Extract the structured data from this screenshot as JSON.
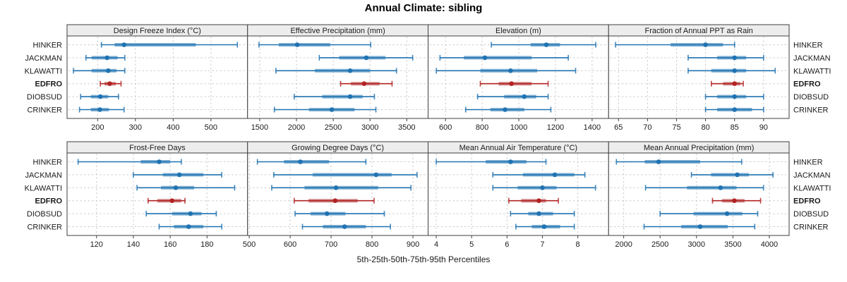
{
  "title": "Annual Climate: sibling",
  "caption": "5th-25th-50th-75th-95th Percentiles",
  "colors": {
    "series_blue": "#2073B2",
    "series_blue_band": "#7FAFD3",
    "highlight_red": "#B22222",
    "highlight_red_band": "#D08A8A",
    "gridline": "#CCCCCC",
    "panel_border": "#3F3F3F",
    "strip_background": "#EDEDED",
    "text": "#1A1A1A"
  },
  "chart_data": {
    "type": "dotplot-percentiles",
    "title": "Annual Climate: sibling",
    "xlabel": "5th-25th-50th-75th-95th Percentiles",
    "percentiles": [
      5,
      25,
      50,
      75,
      95
    ],
    "legend_position": "none",
    "grid": "dashed",
    "stations": [
      "HINKER",
      "JACKMAN",
      "KLAWATTI",
      "EDFRO",
      "DIOBSUD",
      "CRINKER"
    ],
    "highlight_station": "EDFRO",
    "panels": [
      {
        "title": "Design Freeze Index (°C)",
        "xlim": [
          119,
          597
        ],
        "ticks": [
          200,
          300,
          400,
          500
        ],
        "series": [
          [
            210,
            245,
            270,
            460,
            570
          ],
          [
            169,
            184,
            225,
            253,
            272
          ],
          [
            136,
            184,
            228,
            250,
            272
          ],
          [
            207,
            218,
            232,
            248,
            262
          ],
          [
            155,
            182,
            207,
            228,
            255
          ],
          [
            152,
            182,
            206,
            230,
            270
          ]
        ]
      },
      {
        "title": "Effective Precipitation (mm)",
        "xlim": [
          1335,
          3790
        ],
        "ticks": [
          1500,
          2000,
          2500,
          3000,
          3500
        ],
        "series": [
          [
            1490,
            1760,
            2010,
            2460,
            3010
          ],
          [
            2310,
            2580,
            2950,
            3210,
            3580
          ],
          [
            1720,
            2250,
            2730,
            3000,
            3360
          ],
          [
            2600,
            2740,
            2920,
            3130,
            3300
          ],
          [
            1970,
            2350,
            2730,
            2900,
            3060
          ],
          [
            1700,
            2170,
            2480,
            2790,
            3080
          ]
        ]
      },
      {
        "title": "Elevation (m)",
        "xlim": [
          505,
          1490
        ],
        "ticks": [
          600,
          800,
          1000,
          1200,
          1400
        ],
        "series": [
          [
            850,
            1065,
            1150,
            1225,
            1420
          ],
          [
            570,
            700,
            815,
            1070,
            1270
          ],
          [
            550,
            790,
            955,
            1100,
            1310
          ],
          [
            790,
            890,
            960,
            1070,
            1160
          ],
          [
            775,
            920,
            1030,
            1095,
            1160
          ],
          [
            710,
            845,
            925,
            1030,
            1175
          ]
        ]
      },
      {
        "title": "Fraction of Annual PPT as Rain",
        "xlim": [
          63.3,
          94.4
        ],
        "ticks": [
          65,
          70,
          75,
          80,
          85,
          90
        ],
        "series": [
          [
            64.5,
            74,
            80,
            83,
            85
          ],
          [
            77,
            82,
            85,
            87,
            90
          ],
          [
            77,
            81,
            85,
            87,
            92
          ],
          [
            81,
            83,
            85,
            86,
            86.5
          ],
          [
            80,
            82,
            85,
            87,
            90
          ],
          [
            80,
            82,
            85,
            88,
            90
          ]
        ]
      },
      {
        "title": "Frost-Free Days",
        "xlim": [
          104,
          202
        ],
        "ticks": [
          120,
          140,
          160,
          180
        ],
        "series": [
          [
            110,
            144,
            154,
            160,
            166
          ],
          [
            140,
            156,
            165,
            178,
            188
          ],
          [
            142,
            155,
            163,
            173,
            195
          ],
          [
            148,
            153,
            161,
            166,
            168
          ],
          [
            147,
            161,
            171,
            177,
            185
          ],
          [
            154,
            162,
            170,
            178,
            188
          ]
        ]
      },
      {
        "title": "Growing Degree Days (°C)",
        "xlim": [
          496,
          937
        ],
        "ticks": [
          500,
          600,
          700,
          800,
          900
        ],
        "series": [
          [
            520,
            585,
            625,
            695,
            785
          ],
          [
            560,
            655,
            810,
            848,
            910
          ],
          [
            555,
            635,
            712,
            815,
            895
          ],
          [
            610,
            645,
            710,
            765,
            805
          ],
          [
            612,
            650,
            690,
            735,
            830
          ],
          [
            630,
            680,
            733,
            785,
            845
          ]
        ]
      },
      {
        "title": "Mean Annual Air Temperature (°C)",
        "xlim": [
          3.77,
          8.87
        ],
        "ticks": [
          4,
          5,
          6,
          7,
          8
        ],
        "series": [
          [
            4.0,
            5.4,
            6.1,
            6.55,
            7.1
          ],
          [
            5.6,
            6.45,
            7.35,
            7.9,
            8.2
          ],
          [
            5.6,
            6.3,
            7.0,
            7.4,
            8.5
          ],
          [
            6.05,
            6.4,
            6.9,
            7.1,
            7.45
          ],
          [
            6.1,
            6.6,
            6.9,
            7.3,
            7.9
          ],
          [
            6.25,
            6.7,
            7.05,
            7.5,
            7.9
          ]
        ]
      },
      {
        "title": "Mean Annual Precipitation (mm)",
        "xlim": [
          1793,
          4272
        ],
        "ticks": [
          2000,
          2500,
          3000,
          3500,
          4000
        ],
        "series": [
          [
            1900,
            2290,
            2480,
            3050,
            3620
          ],
          [
            2930,
            3200,
            3560,
            3720,
            4050
          ],
          [
            2300,
            2870,
            3330,
            3550,
            3920
          ],
          [
            3220,
            3350,
            3520,
            3660,
            3880
          ],
          [
            2500,
            2960,
            3420,
            3630,
            3840
          ],
          [
            2280,
            2790,
            3050,
            3430,
            3800
          ]
        ]
      }
    ]
  }
}
